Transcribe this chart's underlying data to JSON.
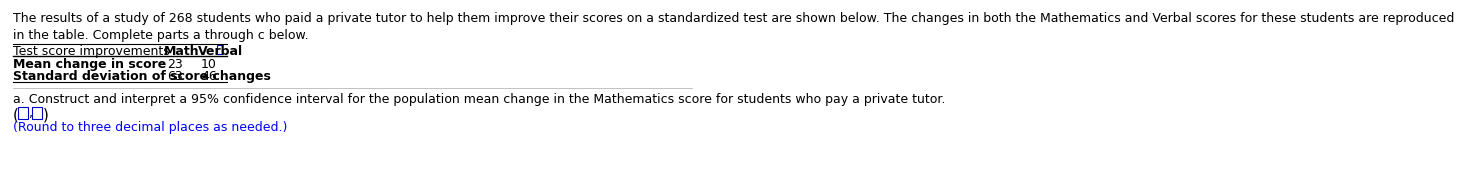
{
  "intro_text": "The results of a study of 268 students who paid a private tutor to help them improve their scores on a standardized test are shown below. The changes in both the Mathematics and Verbal scores for these students are reproduced\nin the table. Complete parts a through c below.",
  "table_header": [
    "Test score improvements",
    "Math",
    "Verbal"
  ],
  "table_rows": [
    [
      "Mean change in score",
      "23",
      "10"
    ],
    [
      "Standard deviation of score changes",
      "63",
      "46"
    ]
  ],
  "part_a_text": "a. Construct and interpret a 95% confidence interval for the population mean change in the Mathematics score for students who pay a private tutor.",
  "round_text": "(Round to three decimal places as needed.)",
  "text_color": "#000000",
  "blue_color": "#0000FF",
  "box_color": "#0000CC",
  "bg_color": "#FFFFFF",
  "font_size": 9,
  "small_font": 8
}
